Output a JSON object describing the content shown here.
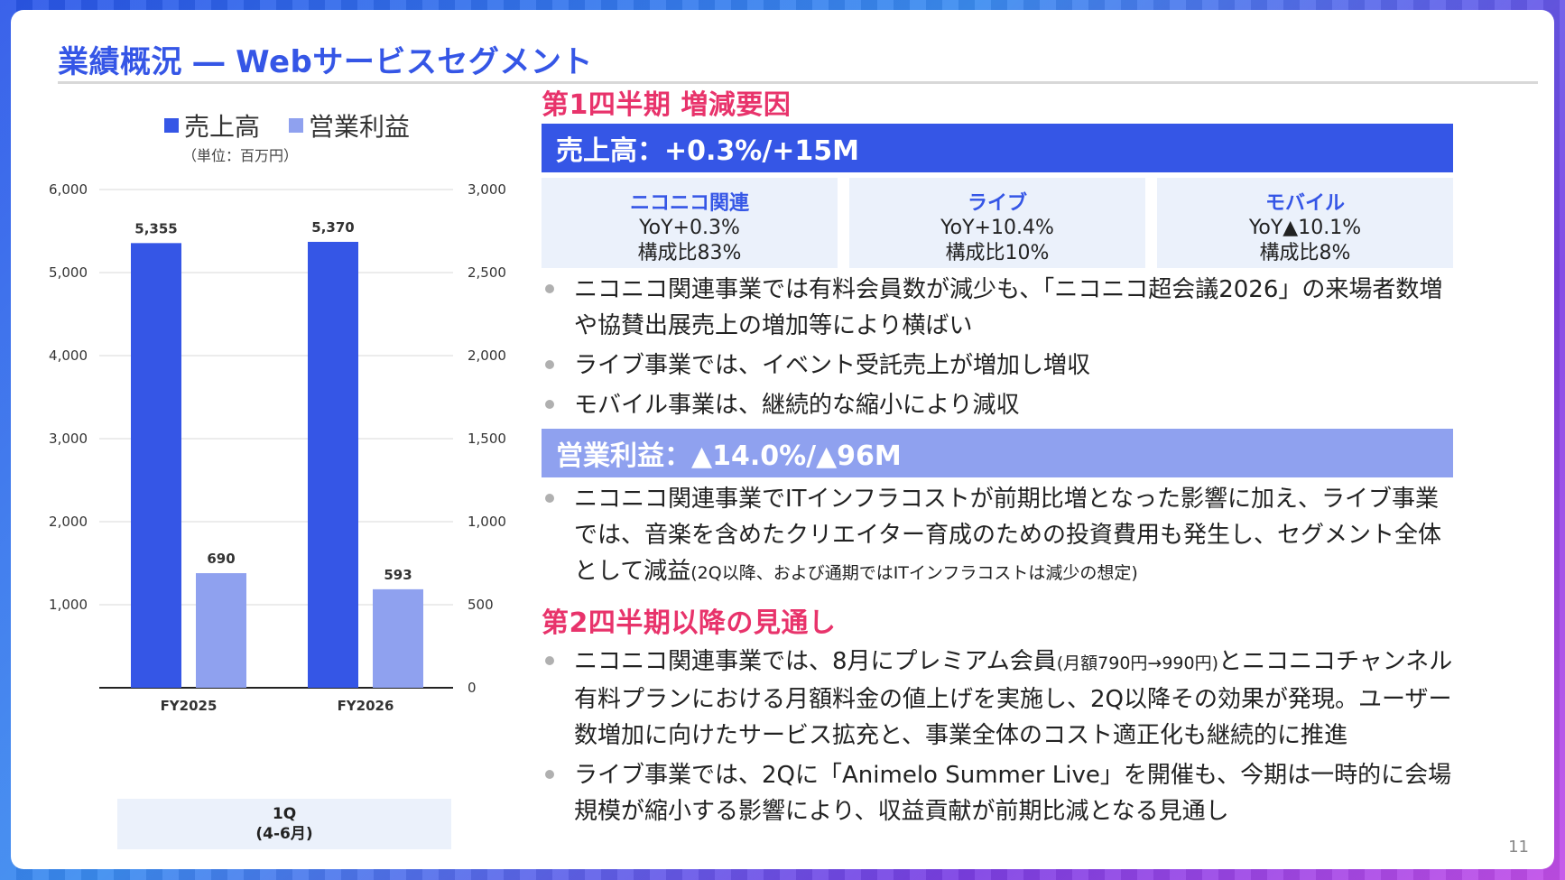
{
  "slide": {
    "title": "業績概況 ― Webサービスセグメント",
    "page_number": "11"
  },
  "legend": {
    "revenue_label": "売上高",
    "op_label": "営業利益",
    "unit": "（単位：百万円）"
  },
  "category_box": {
    "line1": "1Q",
    "line2": "(4-6月)"
  },
  "colors": {
    "revenue": "#3556e6",
    "operating_profit": "#8fa1ef",
    "accent_pink": "#e8336b"
  },
  "chart_data": {
    "type": "bar",
    "categories": [
      "FY2025",
      "FY2026"
    ],
    "series": [
      {
        "name": "売上高",
        "axis": "left",
        "values": [
          5355,
          5370
        ],
        "labels": [
          "5,355",
          "5,370"
        ]
      },
      {
        "name": "営業利益",
        "axis": "right",
        "values": [
          690,
          593
        ],
        "labels": [
          "690",
          "593"
        ]
      }
    ],
    "y_left": {
      "min": 0,
      "max": 6000,
      "ticks": [
        "",
        "1,000",
        "2,000",
        "3,000",
        "4,000",
        "5,000",
        "6,000"
      ]
    },
    "y_right": {
      "min": 0,
      "max": 3000,
      "ticks": [
        "0",
        "500",
        "1,000",
        "1,500",
        "2,000",
        "2,500",
        "3,000"
      ]
    },
    "grid": true,
    "legend_position": "top"
  },
  "q1": {
    "heading": "第1四半期 増減要因",
    "revenue_band": "売上高：+0.3%/+15M",
    "tiles": [
      {
        "name": "ニコニコ関連",
        "yoy": "YoY+0.3%",
        "share": "構成比83%"
      },
      {
        "name": "ライブ",
        "yoy": "YoY+10.4%",
        "share": "構成比10%"
      },
      {
        "name": "モバイル",
        "yoy": "YoY▲10.1%",
        "share": "構成比8%"
      }
    ],
    "revenue_bullets": [
      "ニコニコ関連事業では有料会員数が減少も、「ニコニコ超会議2026」の来場者数増や協賛出展売上の増加等により横ばい",
      "ライブ事業では、イベント受託売上が増加し増収",
      "モバイル事業は、継続的な縮小により減収"
    ],
    "op_band": "営業利益：▲14.0%/▲96M",
    "op_bullet_main": "ニコニコ関連事業でITインフラコストが前期比増となった影響に加え、ライブ事業では、音楽を含めたクリエイター育成のための投資費用も発生し、セグメント全体として減益",
    "op_bullet_note": "(2Q以降、および通期ではITインフラコストは減少の想定)"
  },
  "outlook": {
    "heading": "第2四半期以降の見通し",
    "b1_part1": "ニコニコ関連事業では、8月にプレミアム会員",
    "b1_note": "(月額790円→990円)",
    "b1_part2": "とニコニコチャンネル有料プランにおける月額料金の値上げを実施し、2Q以降その効果が発現。ユーザー数増加に向けたサービス拡充と、事業全体のコスト適正化も継続的に推進",
    "b2": "ライブ事業では、2Qに「Animelo Summer Live」を開催も、今期は一時的に会場規模が縮小する影響により、収益貢献が前期比減となる見通し"
  }
}
